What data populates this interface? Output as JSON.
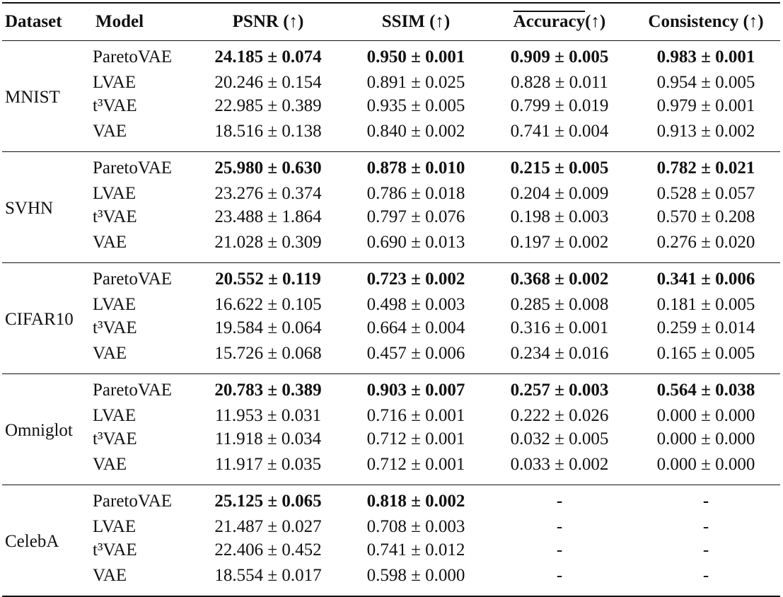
{
  "table": {
    "header": [
      "Dataset",
      "Model",
      "PSNR (↑)",
      "SSIM (↑)",
      "Accuracy",
      "(↑)",
      "Consistency (↑)"
    ],
    "groups": [
      {
        "dataset": "MNIST",
        "rows": [
          [
            "ParetoVAE",
            "24.185 ± 0.074",
            "0.950 ± 0.001",
            "0.909 ± 0.005",
            "0.983 ± 0.001"
          ],
          [
            "LVAE",
            "20.246 ± 0.154",
            "0.891 ± 0.025",
            "0.828 ± 0.011",
            "0.954 ± 0.005"
          ],
          [
            "t³VAE",
            "22.985 ± 0.389",
            "0.935 ± 0.005",
            "0.799 ± 0.019",
            "0.979 ± 0.001"
          ],
          [
            "VAE",
            "18.516 ± 0.138",
            "0.840 ± 0.002",
            "0.741 ± 0.004",
            "0.913 ± 0.002"
          ]
        ]
      },
      {
        "dataset": "SVHN",
        "rows": [
          [
            "ParetoVAE",
            "25.980 ± 0.630",
            "0.878 ± 0.010",
            "0.215 ± 0.005",
            "0.782 ± 0.021"
          ],
          [
            "LVAE",
            "23.276 ± 0.374",
            "0.786 ± 0.018",
            "0.204 ± 0.009",
            "0.528 ± 0.057"
          ],
          [
            "t³VAE",
            "23.488 ± 1.864",
            "0.797 ± 0.076",
            "0.198 ± 0.003",
            "0.570 ± 0.208"
          ],
          [
            "VAE",
            "21.028 ± 0.309",
            "0.690 ± 0.013",
            "0.197 ± 0.002",
            "0.276 ± 0.020"
          ]
        ]
      },
      {
        "dataset": "CIFAR10",
        "rows": [
          [
            "ParetoVAE",
            "20.552 ± 0.119",
            "0.723 ± 0.002",
            "0.368 ± 0.002",
            "0.341 ± 0.006"
          ],
          [
            "LVAE",
            "16.622 ± 0.105",
            "0.498 ± 0.003",
            "0.285 ± 0.008",
            "0.181 ± 0.005"
          ],
          [
            "t³VAE",
            "19.584 ± 0.064",
            "0.664 ± 0.004",
            "0.316 ± 0.001",
            "0.259 ± 0.014"
          ],
          [
            "VAE",
            "15.726 ± 0.068",
            "0.457 ± 0.006",
            "0.234 ± 0.016",
            "0.165 ± 0.005"
          ]
        ]
      },
      {
        "dataset": "Omniglot",
        "rows": [
          [
            "ParetoVAE",
            "20.783 ± 0.389",
            "0.903 ± 0.007",
            "0.257 ± 0.003",
            "0.564 ± 0.038"
          ],
          [
            "LVAE",
            "11.953 ± 0.031",
            "0.716 ± 0.001",
            "0.222 ± 0.026",
            "0.000 ± 0.000"
          ],
          [
            "t³VAE",
            "11.918 ± 0.034",
            "0.712 ± 0.001",
            "0.032 ± 0.005",
            "0.000 ± 0.000"
          ],
          [
            "VAE",
            "11.917 ± 0.035",
            "0.712 ± 0.001",
            "0.033 ± 0.002",
            "0.000 ± 0.000"
          ]
        ]
      },
      {
        "dataset": "CelebA",
        "rows": [
          [
            "ParetoVAE",
            "25.125 ± 0.065",
            "0.818 ± 0.002",
            "-",
            "-"
          ],
          [
            "LVAE",
            "21.487 ± 0.027",
            "0.708 ± 0.003",
            "-",
            "-"
          ],
          [
            "t³VAE",
            "22.406 ± 0.452",
            "0.741 ± 0.012",
            "-",
            "-"
          ],
          [
            "VAE",
            "18.554 ± 0.017",
            "0.598 ± 0.000",
            "-",
            "-"
          ]
        ]
      }
    ]
  }
}
